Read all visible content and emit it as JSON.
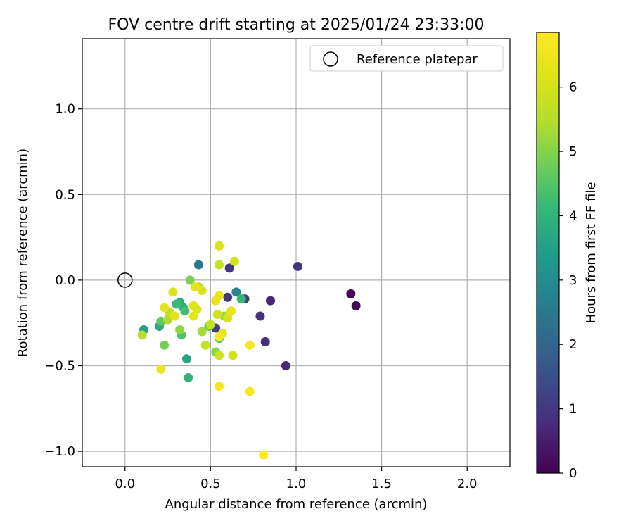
{
  "chart_data": {
    "type": "scatter",
    "title": "FOV centre drift starting at 2025/01/24 23:33:00",
    "xlabel": "Angular distance from reference (arcmin)",
    "ylabel": "Rotation from reference (arcmin)",
    "xlim": [
      -0.25,
      2.25
    ],
    "ylim": [
      -1.09,
      1.41
    ],
    "xticks": [
      0.0,
      0.5,
      1.0,
      1.5,
      2.0
    ],
    "xtick_labels": [
      "0.0",
      "0.5",
      "1.0",
      "1.5",
      "2.0"
    ],
    "yticks": [
      -1.0,
      -0.5,
      0.0,
      0.5,
      1.0
    ],
    "ytick_labels": [
      "−1.0",
      "−0.5",
      "0.0",
      "0.5",
      "1.0"
    ],
    "grid": true,
    "legend": {
      "placement": "top-right",
      "entries": [
        {
          "label": "Reference platepar",
          "marker": "open-circle"
        }
      ]
    },
    "reference_point": {
      "x": 0.0,
      "y": 0.0
    },
    "colorbar": {
      "label": "Hours from first FF file",
      "colormap": "viridis",
      "range": [
        0,
        6.85
      ],
      "ticks": [
        0,
        1,
        2,
        3,
        4,
        5,
        6
      ],
      "tick_labels": [
        "0",
        "1",
        "2",
        "3",
        "4",
        "5",
        "6"
      ]
    },
    "series": [
      {
        "points": [
          {
            "x": 1.32,
            "y": -0.08,
            "h": 0.05
          },
          {
            "x": 1.35,
            "y": -0.15,
            "h": 0.1
          },
          {
            "x": 0.94,
            "y": -0.5,
            "h": 0.7
          },
          {
            "x": 0.85,
            "y": -0.12,
            "h": 0.75
          },
          {
            "x": 0.82,
            "y": -0.36,
            "h": 0.8
          },
          {
            "x": 0.79,
            "y": -0.21,
            "h": 0.9
          },
          {
            "x": 1.01,
            "y": 0.08,
            "h": 0.95
          },
          {
            "x": 0.61,
            "y": 0.07,
            "h": 1.0
          },
          {
            "x": 0.6,
            "y": -0.1,
            "h": 1.05
          },
          {
            "x": 0.7,
            "y": -0.11,
            "h": 1.1
          },
          {
            "x": 0.53,
            "y": -0.28,
            "h": 1.2
          },
          {
            "x": 0.43,
            "y": 0.09,
            "h": 2.5
          },
          {
            "x": 0.65,
            "y": -0.07,
            "h": 2.8
          },
          {
            "x": 0.11,
            "y": -0.29,
            "h": 3.5
          },
          {
            "x": 0.36,
            "y": -0.46,
            "h": 3.6
          },
          {
            "x": 0.2,
            "y": -0.27,
            "h": 3.7
          },
          {
            "x": 0.34,
            "y": -0.16,
            "h": 3.8
          },
          {
            "x": 0.32,
            "y": -0.13,
            "h": 3.9
          },
          {
            "x": 0.37,
            "y": -0.57,
            "h": 4.0
          },
          {
            "x": 0.68,
            "y": -0.11,
            "h": 4.1
          },
          {
            "x": 0.3,
            "y": -0.14,
            "h": 4.2
          },
          {
            "x": 0.35,
            "y": -0.18,
            "h": 4.3
          },
          {
            "x": 0.33,
            "y": -0.32,
            "h": 4.4
          },
          {
            "x": 0.55,
            "y": -0.34,
            "h": 4.5
          },
          {
            "x": 0.21,
            "y": -0.24,
            "h": 4.6
          },
          {
            "x": 0.49,
            "y": -0.27,
            "h": 4.7
          },
          {
            "x": 0.23,
            "y": -0.38,
            "h": 4.8
          },
          {
            "x": 0.38,
            "y": 0.0,
            "h": 4.9
          },
          {
            "x": 0.53,
            "y": -0.42,
            "h": 5.0
          },
          {
            "x": 0.32,
            "y": -0.29,
            "h": 5.1
          },
          {
            "x": 0.58,
            "y": -0.21,
            "h": 5.2
          },
          {
            "x": 0.45,
            "y": -0.3,
            "h": 5.3
          },
          {
            "x": 0.25,
            "y": -0.23,
            "h": 5.4
          },
          {
            "x": 0.1,
            "y": -0.32,
            "h": 5.5
          },
          {
            "x": 0.43,
            "y": -0.04,
            "h": 5.6
          },
          {
            "x": 0.55,
            "y": 0.09,
            "h": 5.7
          },
          {
            "x": 0.26,
            "y": -0.19,
            "h": 5.7
          },
          {
            "x": 0.5,
            "y": -0.26,
            "h": 5.8
          },
          {
            "x": 0.47,
            "y": -0.38,
            "h": 5.8
          },
          {
            "x": 0.54,
            "y": -0.2,
            "h": 5.9
          },
          {
            "x": 0.55,
            "y": -0.44,
            "h": 5.9
          },
          {
            "x": 0.63,
            "y": -0.44,
            "h": 6.0
          },
          {
            "x": 0.64,
            "y": 0.11,
            "h": 6.0
          },
          {
            "x": 0.55,
            "y": 0.2,
            "h": 6.1
          },
          {
            "x": 0.6,
            "y": -0.22,
            "h": 6.1
          },
          {
            "x": 0.45,
            "y": -0.06,
            "h": 6.1
          },
          {
            "x": 0.28,
            "y": -0.07,
            "h": 6.2
          },
          {
            "x": 0.42,
            "y": -0.17,
            "h": 6.2
          },
          {
            "x": 0.4,
            "y": -0.15,
            "h": 6.2
          },
          {
            "x": 0.23,
            "y": -0.16,
            "h": 6.3
          },
          {
            "x": 0.4,
            "y": -0.21,
            "h": 6.3
          },
          {
            "x": 0.29,
            "y": -0.21,
            "h": 6.3
          },
          {
            "x": 0.41,
            "y": -0.04,
            "h": 6.3
          },
          {
            "x": 0.53,
            "y": -0.12,
            "h": 6.4
          },
          {
            "x": 0.55,
            "y": -0.09,
            "h": 6.4
          },
          {
            "x": 0.57,
            "y": -0.31,
            "h": 6.4
          },
          {
            "x": 0.62,
            "y": -0.18,
            "h": 6.4
          },
          {
            "x": 0.21,
            "y": -0.52,
            "h": 6.5
          },
          {
            "x": 0.55,
            "y": -0.62,
            "h": 6.6
          },
          {
            "x": 0.73,
            "y": -0.38,
            "h": 6.7
          },
          {
            "x": 0.73,
            "y": -0.65,
            "h": 6.75
          },
          {
            "x": 0.55,
            "y": -0.33,
            "h": 6.8
          },
          {
            "x": 0.81,
            "y": -1.02,
            "h": 6.85
          }
        ]
      }
    ]
  }
}
